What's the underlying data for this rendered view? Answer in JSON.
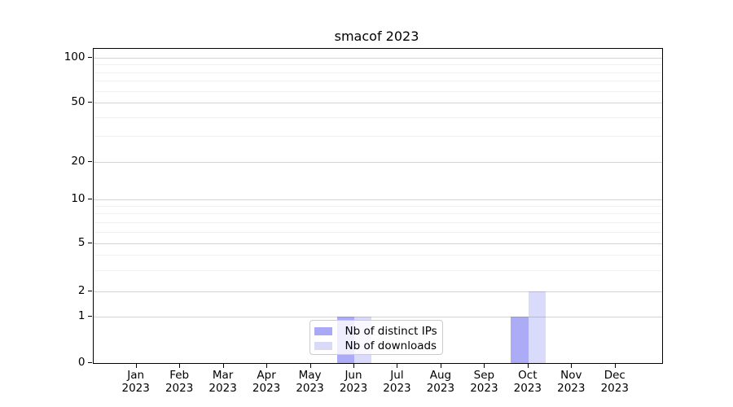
{
  "title": "smacof 2023",
  "y_axis": {
    "major_tick_labels": [
      "100",
      "50",
      "20",
      "10",
      "5",
      "2",
      "1",
      "0"
    ]
  },
  "x_axis": {
    "year_label": "2023"
  },
  "legend": {
    "items": [
      {
        "label": "Nb of distinct IPs",
        "color": "#a9a9f5"
      },
      {
        "label": "Nb of downloads",
        "color": "#d9d9f8"
      }
    ]
  },
  "colors": {
    "distinct_ips_bar": "rgba(70,70,235,0.45)",
    "downloads_bar": "rgba(70,70,235,0.2)",
    "major_gridline": "#d4d4d4",
    "minor_gridline": "#f0f0f0"
  },
  "chart_data": {
    "type": "bar",
    "title": "smacof 2023",
    "categories": [
      "Jan 2023",
      "Feb 2023",
      "Mar 2023",
      "Apr 2023",
      "May 2023",
      "Jun 2023",
      "Jul 2023",
      "Aug 2023",
      "Sep 2023",
      "Oct 2023",
      "Nov 2023",
      "Dec 2023"
    ],
    "series": [
      {
        "name": "Nb of distinct IPs",
        "color": "#a9a9f5",
        "rgba": "rgba(70,70,235,0.45)",
        "values": [
          0,
          0,
          0,
          0,
          0,
          1,
          0,
          0,
          0,
          1,
          0,
          0
        ]
      },
      {
        "name": "Nb of downloads",
        "color": "#d9d9f8",
        "rgba": "rgba(70,70,235,0.2)",
        "values": [
          0,
          0,
          0,
          0,
          0,
          1,
          0,
          0,
          0,
          2,
          0,
          0
        ]
      }
    ],
    "xlabel": "",
    "ylabel": "",
    "yscale": "symlog",
    "ylim": [
      0,
      100
    ],
    "y_major_ticks": [
      0,
      1,
      2,
      5,
      10,
      20,
      50,
      100
    ],
    "y_minor_ticks": [
      3,
      4,
      6,
      7,
      8,
      9,
      30,
      40,
      60,
      70,
      80,
      90
    ],
    "grid": "both",
    "legend_position": "lower center"
  }
}
